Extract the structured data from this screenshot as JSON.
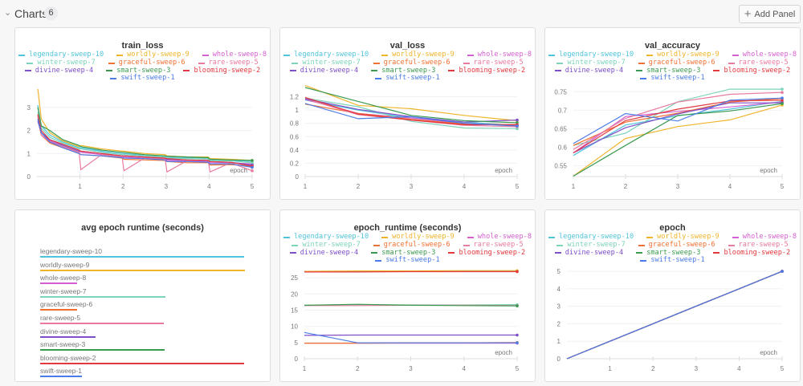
{
  "header": {
    "title": "Charts",
    "count": "6",
    "add_panel_label": "Add Panel"
  },
  "runs": [
    {
      "name": "legendary-sweep-10",
      "color": "#4fc3dc"
    },
    {
      "name": "worldly-sweep-9",
      "color": "#f0b429"
    },
    {
      "name": "whole-sweep-8",
      "color": "#d35fd0"
    },
    {
      "name": "winter-sweep-7",
      "color": "#7dd3bb"
    },
    {
      "name": "graceful-sweep-6",
      "color": "#f07032"
    },
    {
      "name": "rare-sweep-5",
      "color": "#e97a9f"
    },
    {
      "name": "divine-sweep-4",
      "color": "#7d4fc8"
    },
    {
      "name": "smart-sweep-3",
      "color": "#3b9a50"
    },
    {
      "name": "blooming-sweep-2",
      "color": "#e2393f"
    },
    {
      "name": "swift-sweep-1",
      "color": "#4a7be6"
    }
  ],
  "chart_data": [
    {
      "id": "train_loss",
      "type": "line",
      "title": "train_loss",
      "xlabel": "epoch",
      "xlim": [
        0,
        5
      ],
      "ylim": [
        0,
        3.9
      ],
      "xticks": [
        "1",
        "2",
        "3",
        "4",
        "5"
      ],
      "yticks": [
        "0",
        "1",
        "2",
        "3"
      ],
      "x": [
        0.02,
        0.1,
        0.3,
        0.6,
        0.98,
        1.02,
        1.5,
        1.98,
        2.02,
        2.5,
        2.98,
        3.02,
        3.5,
        3.98,
        4.02,
        4.5,
        5
      ],
      "series": [
        {
          "name": "legendary-sweep-10",
          "values": [
            3.1,
            2.2,
            1.8,
            1.5,
            1.25,
            1.25,
            1.1,
            1.0,
            1.0,
            0.92,
            0.88,
            0.85,
            0.82,
            0.8,
            0.72,
            0.7,
            0.65
          ]
        },
        {
          "name": "worldly-sweep-9",
          "values": [
            3.8,
            2.5,
            1.9,
            1.55,
            1.3,
            1.35,
            1.2,
            1.1,
            1.1,
            1.0,
            0.95,
            0.9,
            0.85,
            0.85,
            0.78,
            0.75,
            0.7
          ]
        },
        {
          "name": "whole-sweep-8",
          "values": [
            2.6,
            1.9,
            1.55,
            1.3,
            1.05,
            1.05,
            0.95,
            0.85,
            0.85,
            0.8,
            0.78,
            0.7,
            0.68,
            0.65,
            0.6,
            0.6,
            0.55
          ]
        },
        {
          "name": "winter-sweep-7",
          "values": [
            2.8,
            2.1,
            1.7,
            1.45,
            1.2,
            1.2,
            1.05,
            0.95,
            0.95,
            0.9,
            0.85,
            0.8,
            0.78,
            0.76,
            0.7,
            0.68,
            0.6
          ]
        },
        {
          "name": "graceful-sweep-6",
          "values": [
            2.5,
            1.8,
            1.45,
            1.25,
            1.0,
            0.95,
            0.9,
            0.8,
            0.75,
            0.72,
            0.7,
            0.65,
            0.6,
            0.6,
            0.5,
            0.52,
            0.45
          ]
        },
        {
          "name": "rare-sweep-5",
          "values": [
            2.7,
            1.8,
            1.5,
            1.3,
            1.05,
            0.3,
            0.95,
            0.85,
            0.25,
            0.8,
            0.75,
            0.2,
            0.7,
            0.7,
            0.2,
            0.6,
            0.25
          ]
        },
        {
          "name": "divine-sweep-4",
          "values": [
            2.4,
            1.9,
            1.6,
            1.35,
            1.1,
            1.1,
            1.0,
            0.9,
            0.9,
            0.85,
            0.8,
            0.75,
            0.72,
            0.7,
            0.65,
            0.62,
            0.5
          ]
        },
        {
          "name": "smart-sweep-3",
          "values": [
            3.0,
            2.2,
            2.0,
            1.6,
            1.35,
            1.3,
            1.15,
            1.05,
            1.05,
            0.95,
            0.9,
            0.88,
            0.85,
            0.82,
            0.75,
            0.72,
            0.7
          ]
        },
        {
          "name": "blooming-sweep-2",
          "values": [
            2.7,
            2.0,
            1.6,
            1.4,
            1.15,
            1.1,
            1.0,
            0.9,
            0.9,
            0.85,
            0.8,
            0.78,
            0.72,
            0.7,
            0.65,
            0.62,
            0.45
          ]
        },
        {
          "name": "swift-sweep-1",
          "values": [
            2.5,
            1.9,
            1.5,
            1.25,
            1.0,
            0.95,
            0.9,
            0.82,
            0.8,
            0.78,
            0.72,
            0.65,
            0.65,
            0.62,
            0.55,
            0.55,
            0.4
          ]
        }
      ]
    },
    {
      "id": "val_loss",
      "type": "line",
      "title": "val_loss",
      "xlabel": "epoch",
      "xlim": [
        1,
        5
      ],
      "ylim": [
        0,
        1.4
      ],
      "xticks": [
        "1",
        "2",
        "3",
        "4",
        "5"
      ],
      "yticks": [
        "0",
        "0.2",
        "0.4",
        "0.6",
        "0.8",
        "1",
        "1.2"
      ],
      "x": [
        1,
        2,
        3,
        4,
        5
      ],
      "series": [
        {
          "name": "legendary-sweep-10",
          "values": [
            1.15,
            1.0,
            0.88,
            0.82,
            0.77
          ]
        },
        {
          "name": "worldly-sweep-9",
          "values": [
            1.37,
            1.07,
            1.02,
            0.92,
            0.84
          ]
        },
        {
          "name": "whole-sweep-8",
          "values": [
            1.16,
            0.95,
            0.88,
            0.8,
            0.77
          ]
        },
        {
          "name": "winter-sweep-7",
          "values": [
            1.18,
            1.05,
            0.83,
            0.73,
            0.72
          ]
        },
        {
          "name": "graceful-sweep-6",
          "values": [
            1.09,
            0.95,
            0.86,
            0.79,
            0.78
          ]
        },
        {
          "name": "rare-sweep-5",
          "values": [
            1.17,
            0.93,
            0.85,
            0.77,
            0.75
          ]
        },
        {
          "name": "divine-sweep-4",
          "values": [
            1.17,
            1.01,
            0.9,
            0.82,
            0.85
          ]
        },
        {
          "name": "smart-sweep-3",
          "values": [
            1.34,
            1.13,
            0.92,
            0.84,
            0.81
          ]
        },
        {
          "name": "blooming-sweep-2",
          "values": [
            1.19,
            0.94,
            0.85,
            0.78,
            0.78
          ]
        },
        {
          "name": "swift-sweep-1",
          "values": [
            1.1,
            0.87,
            0.9,
            0.8,
            0.76
          ]
        }
      ]
    },
    {
      "id": "val_accuracy",
      "type": "line",
      "title": "val_accuracy",
      "xlabel": "epoch",
      "xlim": [
        1,
        5
      ],
      "ylim": [
        0.521,
        0.768
      ],
      "xticks": [
        "1",
        "2",
        "3",
        "4",
        "5"
      ],
      "yticks": [
        "0.55",
        "0.6",
        "0.65",
        "0.7",
        "0.75"
      ],
      "x": [
        1,
        2,
        3,
        4,
        5
      ],
      "series": [
        {
          "name": "legendary-sweep-10",
          "values": [
            0.578,
            0.66,
            0.685,
            0.703,
            0.724
          ]
        },
        {
          "name": "worldly-sweep-9",
          "values": [
            0.522,
            0.624,
            0.656,
            0.674,
            0.714
          ]
        },
        {
          "name": "whole-sweep-8",
          "values": [
            0.585,
            0.683,
            0.697,
            0.709,
            0.722
          ]
        },
        {
          "name": "winter-sweep-7",
          "values": [
            0.605,
            0.638,
            0.723,
            0.757,
            0.757
          ]
        },
        {
          "name": "graceful-sweep-6",
          "values": [
            0.605,
            0.668,
            0.692,
            0.722,
            0.732
          ]
        },
        {
          "name": "rare-sweep-5",
          "values": [
            0.594,
            0.678,
            0.722,
            0.743,
            0.748
          ]
        },
        {
          "name": "divine-sweep-4",
          "values": [
            0.585,
            0.653,
            0.69,
            0.72,
            0.72
          ]
        },
        {
          "name": "smart-sweep-3",
          "values": [
            0.522,
            0.605,
            0.686,
            0.698,
            0.718
          ]
        },
        {
          "name": "blooming-sweep-2",
          "values": [
            0.585,
            0.672,
            0.703,
            0.725,
            0.727
          ]
        },
        {
          "name": "swift-sweep-1",
          "values": [
            0.61,
            0.691,
            0.671,
            0.727,
            0.733
          ]
        }
      ]
    },
    {
      "id": "avg_epoch_runtime",
      "type": "bar",
      "title": "avg epoch runtime (seconds)",
      "categories": [
        "legendary-sweep-10",
        "worldly-sweep-9",
        "whole-sweep-8",
        "winter-sweep-7",
        "graceful-sweep-6",
        "rare-sweep-5",
        "divine-sweep-4",
        "smart-sweep-3",
        "blooming-sweep-2",
        "swift-sweep-1"
      ],
      "values": [
        27.0,
        27.1,
        4.9,
        16.6,
        4.9,
        16.4,
        7.3,
        16.5,
        27.0,
        5.5
      ]
    },
    {
      "id": "epoch_runtime",
      "type": "line",
      "title": "epoch_runtime (seconds)",
      "xlabel": "epoch",
      "xlim": [
        1,
        5
      ],
      "ylim": [
        0,
        28.5
      ],
      "xticks": [
        "1",
        "2",
        "3",
        "4",
        "5"
      ],
      "yticks": [
        "0",
        "5",
        "10",
        "15",
        "20",
        "25"
      ],
      "x": [
        1,
        2,
        3,
        4,
        5
      ],
      "series": [
        {
          "name": "legendary-sweep-10",
          "values": [
            26.9,
            27,
            27,
            27,
            27
          ]
        },
        {
          "name": "worldly-sweep-9",
          "values": [
            27,
            27.1,
            27.1,
            27.2,
            27.2
          ]
        },
        {
          "name": "whole-sweep-8",
          "values": [
            4.8,
            4.8,
            4.8,
            4.8,
            4.8
          ]
        },
        {
          "name": "winter-sweep-7",
          "values": [
            16.5,
            16.7,
            16.6,
            16.6,
            16.7
          ]
        },
        {
          "name": "graceful-sweep-6",
          "values": [
            4.8,
            4.8,
            4.9,
            4.9,
            5.0
          ]
        },
        {
          "name": "rare-sweep-5",
          "values": [
            16.4,
            16.4,
            16.5,
            16.5,
            16.4
          ]
        },
        {
          "name": "divine-sweep-4",
          "values": [
            7.2,
            7.3,
            7.3,
            7.3,
            7.3
          ]
        },
        {
          "name": "smart-sweep-3",
          "values": [
            16.5,
            16.8,
            16.5,
            16.4,
            16.3
          ]
        },
        {
          "name": "blooming-sweep-2",
          "values": [
            26.8,
            26.8,
            26.9,
            26.9,
            26.9
          ]
        },
        {
          "name": "swift-sweep-1",
          "values": [
            8.1,
            4.9,
            4.9,
            4.9,
            4.9
          ]
        }
      ]
    },
    {
      "id": "epoch",
      "type": "line",
      "title": "epoch",
      "xlabel": "epoch",
      "xlim": [
        0,
        5
      ],
      "ylim": [
        0,
        5.6
      ],
      "xticks": [
        "1",
        "2",
        "3",
        "4",
        "5"
      ],
      "yticks": [
        "0",
        "1",
        "2",
        "3",
        "4",
        "5"
      ],
      "x": [
        0,
        1,
        2,
        3,
        4,
        5
      ],
      "series": [
        {
          "name": "legendary-sweep-10",
          "values": [
            0,
            1,
            2,
            3,
            4,
            5
          ]
        },
        {
          "name": "worldly-sweep-9",
          "values": [
            0,
            1,
            2,
            3,
            4,
            5
          ]
        },
        {
          "name": "whole-sweep-8",
          "values": [
            0,
            1,
            2,
            3,
            4,
            5
          ]
        },
        {
          "name": "winter-sweep-7",
          "values": [
            0,
            1,
            2,
            3,
            4,
            5
          ]
        },
        {
          "name": "graceful-sweep-6",
          "values": [
            0,
            1,
            2,
            3,
            4,
            5
          ]
        },
        {
          "name": "rare-sweep-5",
          "values": [
            0,
            1,
            2,
            3,
            4,
            5
          ]
        },
        {
          "name": "divine-sweep-4",
          "values": [
            0,
            1,
            2,
            3,
            4,
            5
          ]
        },
        {
          "name": "smart-sweep-3",
          "values": [
            0,
            1,
            2,
            3,
            4,
            5
          ]
        },
        {
          "name": "blooming-sweep-2",
          "values": [
            0,
            1,
            2,
            3,
            4,
            5
          ]
        },
        {
          "name": "swift-sweep-1",
          "values": [
            0,
            1,
            2,
            3,
            4,
            5
          ]
        }
      ]
    }
  ]
}
